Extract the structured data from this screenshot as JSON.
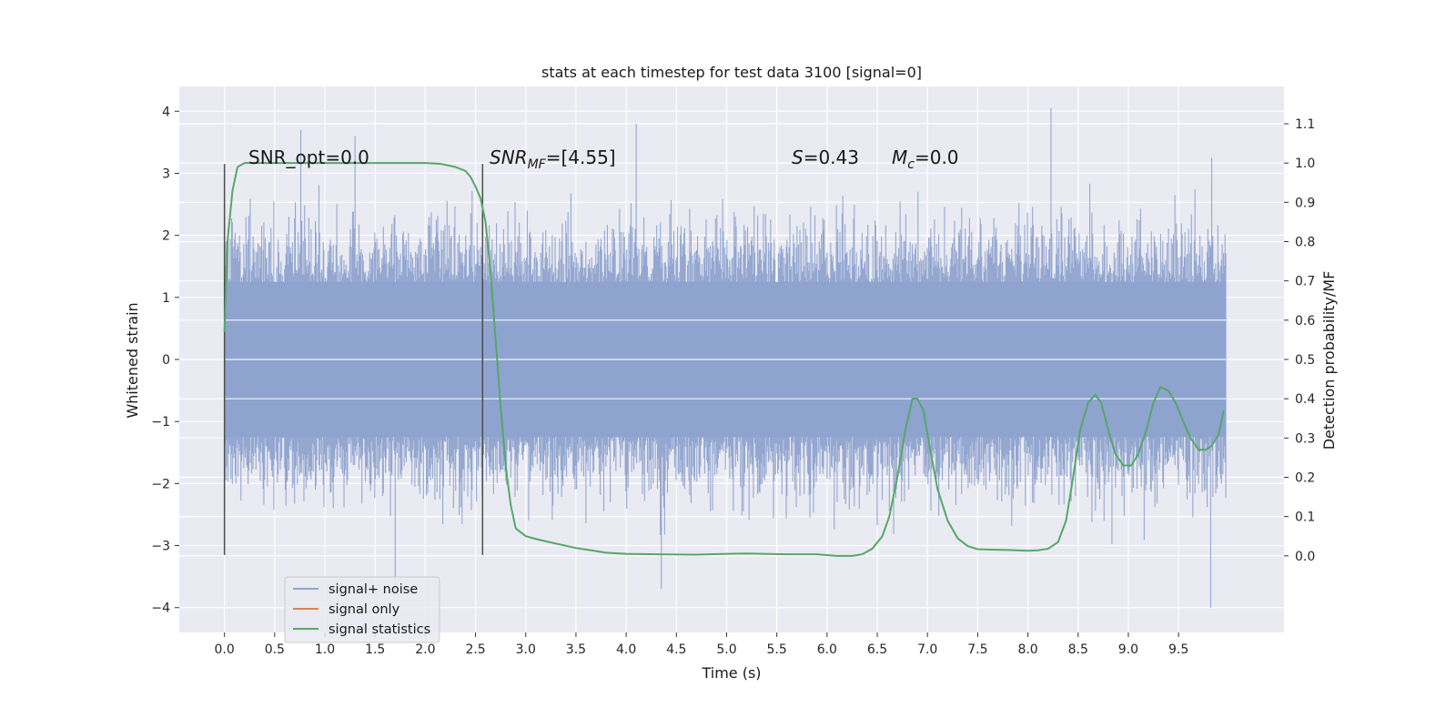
{
  "chart_data": {
    "type": "line",
    "title": "stats at each timestep for test data 3100 [signal=0]",
    "xlabel": "Time (s)",
    "ylabel": "Whitened strain",
    "y2label": "Detection probability/MF",
    "xlim": [
      -0.45,
      10.55
    ],
    "ylim": [
      -4.4,
      4.4
    ],
    "y2lim": [
      -0.195,
      1.195
    ],
    "x_ticks": [
      "0.0",
      "0.5",
      "1.0",
      "1.5",
      "2.0",
      "2.5",
      "3.0",
      "3.5",
      "4.0",
      "4.5",
      "5.0",
      "5.5",
      "6.0",
      "6.5",
      "7.0",
      "7.5",
      "8.0",
      "8.5",
      "9.0",
      "9.5"
    ],
    "y_ticks": [
      "4",
      "3",
      "2",
      "1",
      "0",
      "−1",
      "−2",
      "−3",
      "−4"
    ],
    "y2_ticks": [
      "1.1",
      "1.0",
      "0.9",
      "0.8",
      "0.7",
      "0.6",
      "0.5",
      "0.4",
      "0.3",
      "0.2",
      "0.1",
      "0.0"
    ],
    "grid": true,
    "legend_position": "lower-left",
    "annotations": {
      "snr_opt": "SNR_opt=0.0",
      "snr_mf_base": "SNR",
      "snr_mf_sub": "MF",
      "snr_mf_val": "=[4.55]",
      "s_base": "S",
      "s_val": "=0.43",
      "mc_base": "M",
      "mc_sub": "c",
      "mc_val": "=0.0"
    },
    "vertical_markers": [
      {
        "x": 0.0,
        "ymin": -3.15,
        "ymax": 3.15
      },
      {
        "x": 2.57,
        "ymin": -3.15,
        "ymax": 3.15
      }
    ],
    "series": [
      {
        "name": "signal+ noise",
        "color": "#8fa3cf",
        "axis": "left",
        "x_start": 0.0,
        "x_end": 9.97,
        "typical_amplitude": 1.25,
        "peak_extremes": [
          {
            "x": 0.76,
            "y": 3.7
          },
          {
            "x": 1.3,
            "y": 3.6
          },
          {
            "x": 1.7,
            "y": -3.7
          },
          {
            "x": 4.1,
            "y": 3.8
          },
          {
            "x": 4.35,
            "y": -3.7
          },
          {
            "x": 8.23,
            "y": 4.05
          },
          {
            "x": 9.82,
            "y": -4.0
          },
          {
            "x": 9.83,
            "y": 3.25
          }
        ]
      },
      {
        "name": "signal only",
        "color": "#dd8452",
        "axis": "left",
        "x": [],
        "y": []
      },
      {
        "name": "signal statistics",
        "color": "#55a868",
        "axis": "right",
        "x": [
          0.0,
          0.03,
          0.08,
          0.13,
          0.2,
          0.3,
          0.5,
          1.0,
          1.5,
          2.0,
          2.15,
          2.3,
          2.4,
          2.45,
          2.5,
          2.55,
          2.6,
          2.65,
          2.7,
          2.75,
          2.8,
          2.85,
          2.9,
          2.95,
          3.0,
          3.1,
          3.2,
          3.5,
          3.8,
          4.0,
          4.3,
          4.7,
          5.0,
          5.2,
          5.6,
          5.9,
          6.1,
          6.25,
          6.35,
          6.45,
          6.55,
          6.62,
          6.7,
          6.78,
          6.85,
          6.9,
          6.96,
          7.02,
          7.1,
          7.2,
          7.3,
          7.4,
          7.5,
          7.6,
          7.8,
          8.0,
          8.1,
          8.2,
          8.3,
          8.38,
          8.45,
          8.52,
          8.6,
          8.67,
          8.73,
          8.8,
          8.87,
          8.95,
          9.03,
          9.1,
          9.18,
          9.25,
          9.32,
          9.4,
          9.47,
          9.55,
          9.62,
          9.7,
          9.77,
          9.83,
          9.9,
          9.95
        ],
        "y": [
          0.57,
          0.8,
          0.93,
          0.99,
          1.0,
          1.0,
          1.0,
          1.0,
          1.0,
          1.0,
          0.998,
          0.99,
          0.98,
          0.965,
          0.94,
          0.91,
          0.85,
          0.72,
          0.55,
          0.38,
          0.23,
          0.13,
          0.07,
          0.06,
          0.05,
          0.043,
          0.037,
          0.02,
          0.008,
          0.005,
          0.004,
          0.003,
          0.005,
          0.006,
          0.004,
          0.004,
          0.0,
          0.0,
          0.004,
          0.018,
          0.05,
          0.1,
          0.2,
          0.32,
          0.4,
          0.4,
          0.37,
          0.28,
          0.17,
          0.09,
          0.045,
          0.025,
          0.017,
          0.016,
          0.015,
          0.013,
          0.014,
          0.018,
          0.035,
          0.09,
          0.2,
          0.32,
          0.39,
          0.41,
          0.39,
          0.32,
          0.26,
          0.23,
          0.23,
          0.26,
          0.32,
          0.39,
          0.43,
          0.42,
          0.39,
          0.34,
          0.3,
          0.27,
          0.27,
          0.28,
          0.31,
          0.37
        ]
      }
    ]
  }
}
